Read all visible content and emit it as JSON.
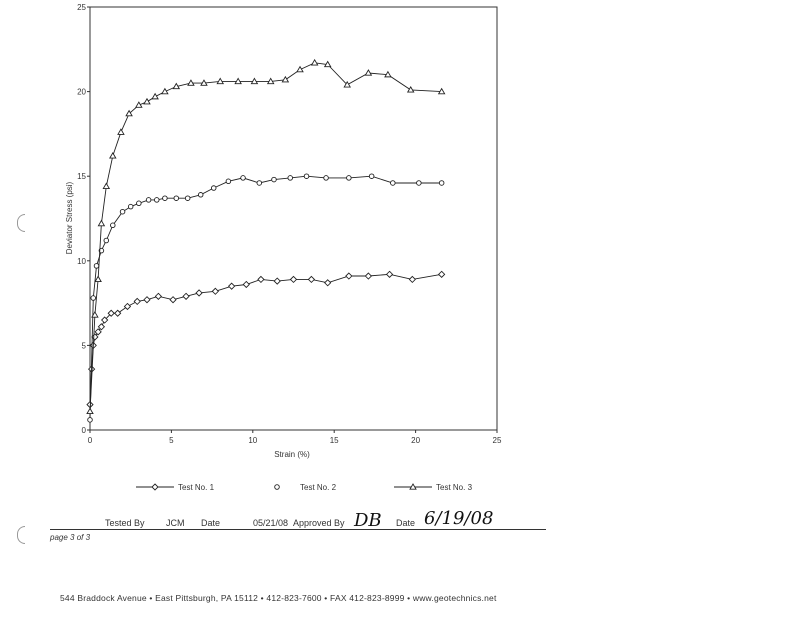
{
  "chart_data": {
    "type": "line",
    "title": "",
    "xlabel": "Strain (%)",
    "ylabel": "Deviator Stress (psi)",
    "xlim": [
      0,
      25
    ],
    "ylim": [
      0,
      25
    ],
    "x_ticks": [
      "0",
      "5",
      "10",
      "15",
      "20",
      "25"
    ],
    "y_ticks": [
      "0",
      "5",
      "10",
      "15",
      "20",
      "25"
    ],
    "grid": false,
    "legend_position": "bottom",
    "series": [
      {
        "name": "Test No. 1",
        "marker": "diamond",
        "x": [
          0,
          0.1,
          0.2,
          0.3,
          0.5,
          0.7,
          0.9,
          1.3,
          1.7,
          2.3,
          2.9,
          3.5,
          4.2,
          5.1,
          5.9,
          6.7,
          7.7,
          8.7,
          9.6,
          10.5,
          11.5,
          12.5,
          13.6,
          14.6,
          15.9,
          17.1,
          18.4,
          19.8,
          21.6
        ],
        "y": [
          1.5,
          3.6,
          5.0,
          5.5,
          5.8,
          6.1,
          6.5,
          6.9,
          6.9,
          7.3,
          7.6,
          7.7,
          7.9,
          7.7,
          7.9,
          8.1,
          8.2,
          8.5,
          8.6,
          8.9,
          8.8,
          8.9,
          8.9,
          8.7,
          9.1,
          9.1,
          9.2,
          8.9,
          9.2
        ]
      },
      {
        "name": "Test No. 2",
        "marker": "circle",
        "x": [
          0,
          0.2,
          0.4,
          0.7,
          1.0,
          1.4,
          2.0,
          2.5,
          3.0,
          3.6,
          4.1,
          4.6,
          5.3,
          6.0,
          6.8,
          7.6,
          8.5,
          9.4,
          10.4,
          11.3,
          12.3,
          13.3,
          14.5,
          15.9,
          17.3,
          18.6,
          20.2,
          21.6
        ],
        "y": [
          0.6,
          7.8,
          9.7,
          10.6,
          11.2,
          12.1,
          12.9,
          13.2,
          13.4,
          13.6,
          13.6,
          13.7,
          13.7,
          13.7,
          13.9,
          14.3,
          14.7,
          14.9,
          14.6,
          14.8,
          14.9,
          15.0,
          14.9,
          14.9,
          15.0,
          14.6,
          14.6,
          14.6
        ]
      },
      {
        "name": "Test No. 3",
        "marker": "triangle",
        "x": [
          0,
          0.3,
          0.5,
          0.7,
          1.0,
          1.4,
          1.9,
          2.4,
          3.0,
          3.5,
          4.0,
          4.6,
          5.3,
          6.2,
          7.0,
          8.0,
          9.1,
          10.1,
          11.1,
          12.0,
          12.9,
          13.8,
          14.6,
          15.8,
          17.1,
          18.3,
          19.7,
          21.6
        ],
        "y": [
          1.1,
          6.8,
          8.9,
          12.2,
          14.4,
          16.2,
          17.6,
          18.7,
          19.2,
          19.4,
          19.7,
          20.0,
          20.3,
          20.5,
          20.5,
          20.6,
          20.6,
          20.6,
          20.6,
          20.7,
          21.3,
          21.7,
          21.6,
          20.4,
          21.1,
          21.0,
          20.1,
          20.0
        ]
      }
    ]
  },
  "footer": {
    "tested_by_label": "Tested By",
    "tested_by_value": "JCM",
    "date_label": "Date",
    "date_value": "05/21/08",
    "approved_by_label": "Approved By",
    "approved_by_value": "DB",
    "approved_date_label": "Date",
    "approved_date_value": "6/19/08",
    "page_label": "page 3 of 3",
    "address": "544 Braddock Avenue • East Pittsburgh, PA 15112 • 412-823-7600 • FAX 412-823-8999 • www.geotechnics.net"
  }
}
